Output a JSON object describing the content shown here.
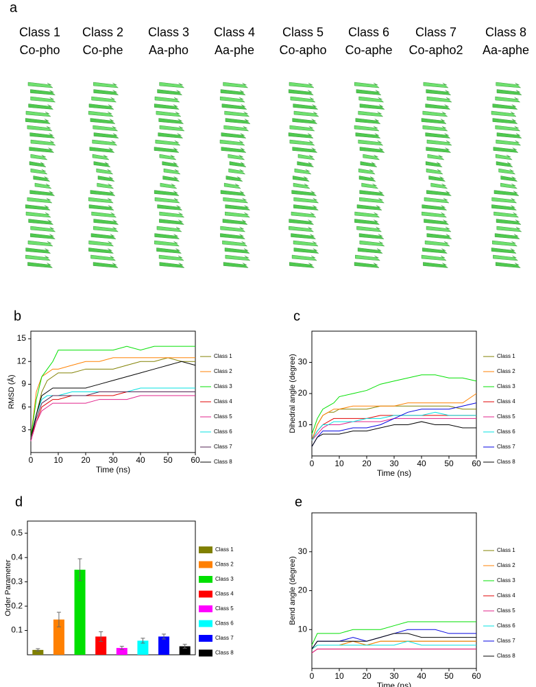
{
  "panel_a": {
    "label": "a",
    "structures": [
      {
        "class": "Class 1",
        "name": "Co-pho"
      },
      {
        "class": "Class 2",
        "name": "Co-phe"
      },
      {
        "class": "Class 3",
        "name": "Aa-pho"
      },
      {
        "class": "Class 4",
        "name": "Aa-phe"
      },
      {
        "class": "Class 5",
        "name": "Co-apho"
      },
      {
        "class": "Class 6",
        "name": "Co-aphe"
      },
      {
        "class": "Class 7",
        "name": "Co-apho2"
      },
      {
        "class": "Class 8",
        "name": "Aa-aphe"
      }
    ]
  },
  "chart_data": [
    {
      "label": "b",
      "type": "line",
      "xlabel": "Time (ns)",
      "ylabel": "RMSD (Å)",
      "x": [
        0,
        2,
        4,
        6,
        8,
        10,
        15,
        20,
        25,
        30,
        35,
        40,
        45,
        50,
        55,
        60
      ],
      "xlim": [
        0,
        60
      ],
      "xticks": [
        0,
        10,
        20,
        30,
        40,
        50,
        60
      ],
      "ylim": [
        0,
        16
      ],
      "yticks": [
        3,
        6,
        9,
        12,
        15
      ],
      "series": [
        {
          "name": "Class 1",
          "color": "#808000",
          "values": [
            2,
            5,
            8,
            9.5,
            10,
            10.5,
            10.5,
            11,
            11,
            11,
            11.5,
            12,
            12,
            12.5,
            12,
            12
          ]
        },
        {
          "name": "Class 2",
          "color": "#ff8000",
          "values": [
            2,
            8,
            10,
            10.5,
            11,
            11,
            11.5,
            12,
            12,
            12.5,
            12.5,
            12.5,
            12.5,
            12.5,
            12.5,
            12.5
          ]
        },
        {
          "name": "Class 3",
          "color": "#00e000",
          "values": [
            2,
            7,
            10,
            11,
            12,
            13.5,
            13.5,
            13.5,
            13.5,
            13.5,
            14,
            13.5,
            14,
            14,
            14,
            14
          ]
        },
        {
          "name": "Class 4",
          "color": "#e00000",
          "values": [
            2,
            4,
            6,
            6.5,
            7,
            7,
            7.5,
            7.5,
            7.5,
            7.5,
            8,
            8,
            8,
            8,
            8,
            8
          ]
        },
        {
          "name": "Class 5",
          "color": "#e0208a",
          "values": [
            1.5,
            4,
            5.5,
            6,
            6.5,
            6.5,
            6.5,
            6.5,
            7,
            7,
            7,
            7.5,
            7.5,
            7.5,
            7.5,
            7.5
          ]
        },
        {
          "name": "Class 6",
          "color": "#00e0e0",
          "values": [
            2,
            5,
            7,
            7.5,
            7.5,
            7.5,
            8,
            8,
            8,
            8,
            8,
            8.5,
            8.5,
            8.5,
            8.5,
            8.5
          ]
        },
        {
          "name": "Class 7",
          "color": "#502050",
          "values": [
            2,
            4.5,
            6.5,
            7,
            7.5,
            7.5,
            7.5,
            7.5,
            8,
            8,
            8,
            8,
            8,
            8,
            8,
            8
          ]
        },
        {
          "name": "Class 8",
          "color": "#000000",
          "values": [
            2,
            5,
            7.5,
            8,
            8.5,
            8.5,
            8.5,
            8.5,
            9,
            9.5,
            10,
            10.5,
            11,
            11.5,
            12,
            11.5
          ]
        }
      ]
    },
    {
      "label": "c",
      "type": "line",
      "xlabel": "Time (ns)",
      "ylabel": "Dihedral angle (degree)",
      "x": [
        0,
        2,
        4,
        6,
        8,
        10,
        15,
        20,
        25,
        30,
        35,
        40,
        45,
        50,
        55,
        60
      ],
      "xlim": [
        0,
        60
      ],
      "xticks": [
        0,
        10,
        20,
        30,
        40,
        50,
        60
      ],
      "ylim": [
        0,
        40
      ],
      "yticks": [
        10,
        20,
        30
      ],
      "series": [
        {
          "name": "Class 1",
          "color": "#808000",
          "values": [
            5,
            10,
            13,
            14,
            14,
            15,
            15,
            15,
            16,
            16,
            16,
            16,
            16,
            16,
            15,
            15
          ]
        },
        {
          "name": "Class 2",
          "color": "#ff8000",
          "values": [
            5,
            10,
            13,
            14,
            15,
            15,
            16,
            16,
            16,
            16,
            17,
            17,
            17,
            17,
            17,
            20
          ]
        },
        {
          "name": "Class 3",
          "color": "#00e000",
          "values": [
            7,
            12,
            15,
            16,
            17,
            19,
            20,
            21,
            23,
            24,
            25,
            26,
            26,
            25,
            25,
            24
          ]
        },
        {
          "name": "Class 4",
          "color": "#e00000",
          "values": [
            5,
            8,
            10,
            11,
            12,
            12,
            12,
            12,
            13,
            13,
            13,
            13,
            13,
            13,
            13,
            13
          ]
        },
        {
          "name": "Class 5",
          "color": "#e0208a",
          "values": [
            5,
            7,
            9,
            10,
            10,
            10,
            11,
            11,
            11,
            12,
            12,
            12,
            12,
            12,
            12,
            12
          ]
        },
        {
          "name": "Class 6",
          "color": "#00e0e0",
          "values": [
            5,
            8,
            10,
            10,
            11,
            11,
            11,
            12,
            12,
            13,
            13,
            13,
            14,
            13,
            13,
            13
          ]
        },
        {
          "name": "Class 7",
          "color": "#0000e0",
          "values": [
            3,
            6,
            8,
            8,
            8,
            8,
            9,
            9,
            10,
            12,
            14,
            15,
            15,
            15,
            16,
            17
          ]
        },
        {
          "name": "Class 8",
          "color": "#000000",
          "values": [
            3,
            6,
            7,
            7,
            7,
            7,
            8,
            8,
            9,
            10,
            10,
            11,
            10,
            10,
            9,
            9
          ]
        }
      ]
    },
    {
      "label": "d",
      "type": "bar",
      "ylabel": "Order Parameter",
      "categories": [
        "Class 1",
        "Class 2",
        "Class 3",
        "Class 4",
        "Class 5",
        "Class 6",
        "Class 7",
        "Class 8"
      ],
      "values": [
        0.02,
        0.145,
        0.35,
        0.075,
        0.028,
        0.058,
        0.075,
        0.035
      ],
      "errors": [
        0.005,
        0.03,
        0.045,
        0.02,
        0.007,
        0.01,
        0.01,
        0.008
      ],
      "colors": [
        "#808000",
        "#ff8000",
        "#00e000",
        "#ff0000",
        "#ff00ff",
        "#00ffff",
        "#0000ff",
        "#000000"
      ],
      "ylim": [
        0,
        0.55
      ],
      "yticks": [
        0.1,
        0.2,
        0.3,
        0.4,
        0.5
      ]
    },
    {
      "label": "e",
      "type": "line",
      "xlabel": "Time (ns)",
      "ylabel": "Bend angle (degree)",
      "x": [
        0,
        2,
        4,
        6,
        8,
        10,
        15,
        20,
        25,
        30,
        35,
        40,
        45,
        50,
        55,
        60
      ],
      "xlim": [
        0,
        60
      ],
      "xticks": [
        0,
        10,
        20,
        30,
        40,
        50,
        60
      ],
      "ylim": [
        0,
        40
      ],
      "yticks": [
        10,
        20,
        30
      ],
      "series": [
        {
          "name": "Class 1",
          "color": "#808000",
          "values": [
            5,
            6,
            6,
            6,
            6,
            6,
            7,
            6,
            7,
            7,
            7,
            7,
            7,
            7,
            7,
            7
          ]
        },
        {
          "name": "Class 2",
          "color": "#ff8000",
          "values": [
            5,
            6,
            6,
            6,
            6,
            6,
            7,
            6,
            7,
            7,
            7,
            7,
            7,
            7,
            7,
            7
          ]
        },
        {
          "name": "Class 3",
          "color": "#00e000",
          "values": [
            6,
            9,
            9,
            9,
            9,
            9,
            10,
            10,
            10,
            11,
            12,
            12,
            12,
            12,
            12,
            12
          ]
        },
        {
          "name": "Class 4",
          "color": "#e00000",
          "values": [
            4,
            5,
            5,
            5,
            5,
            5,
            5,
            5,
            5,
            5,
            5,
            5,
            5,
            5,
            5,
            5
          ]
        },
        {
          "name": "Class 5",
          "color": "#e0208a",
          "values": [
            4,
            5,
            5,
            5,
            5,
            5,
            5,
            5,
            5,
            5,
            5,
            5,
            5,
            5,
            5,
            5
          ]
        },
        {
          "name": "Class 6",
          "color": "#00e0e0",
          "values": [
            5,
            6,
            6,
            6,
            6,
            6,
            6,
            6,
            6,
            6,
            7,
            6,
            6,
            6,
            6,
            6
          ]
        },
        {
          "name": "Class 7",
          "color": "#0000e0",
          "values": [
            5,
            7,
            7,
            7,
            7,
            7,
            8,
            7,
            8,
            9,
            10,
            10,
            10,
            9,
            9,
            9
          ]
        },
        {
          "name": "Class 8",
          "color": "#000000",
          "values": [
            5,
            7,
            7,
            7,
            7,
            7,
            7,
            7,
            8,
            9,
            9,
            8,
            8,
            8,
            8,
            8
          ]
        }
      ]
    }
  ]
}
